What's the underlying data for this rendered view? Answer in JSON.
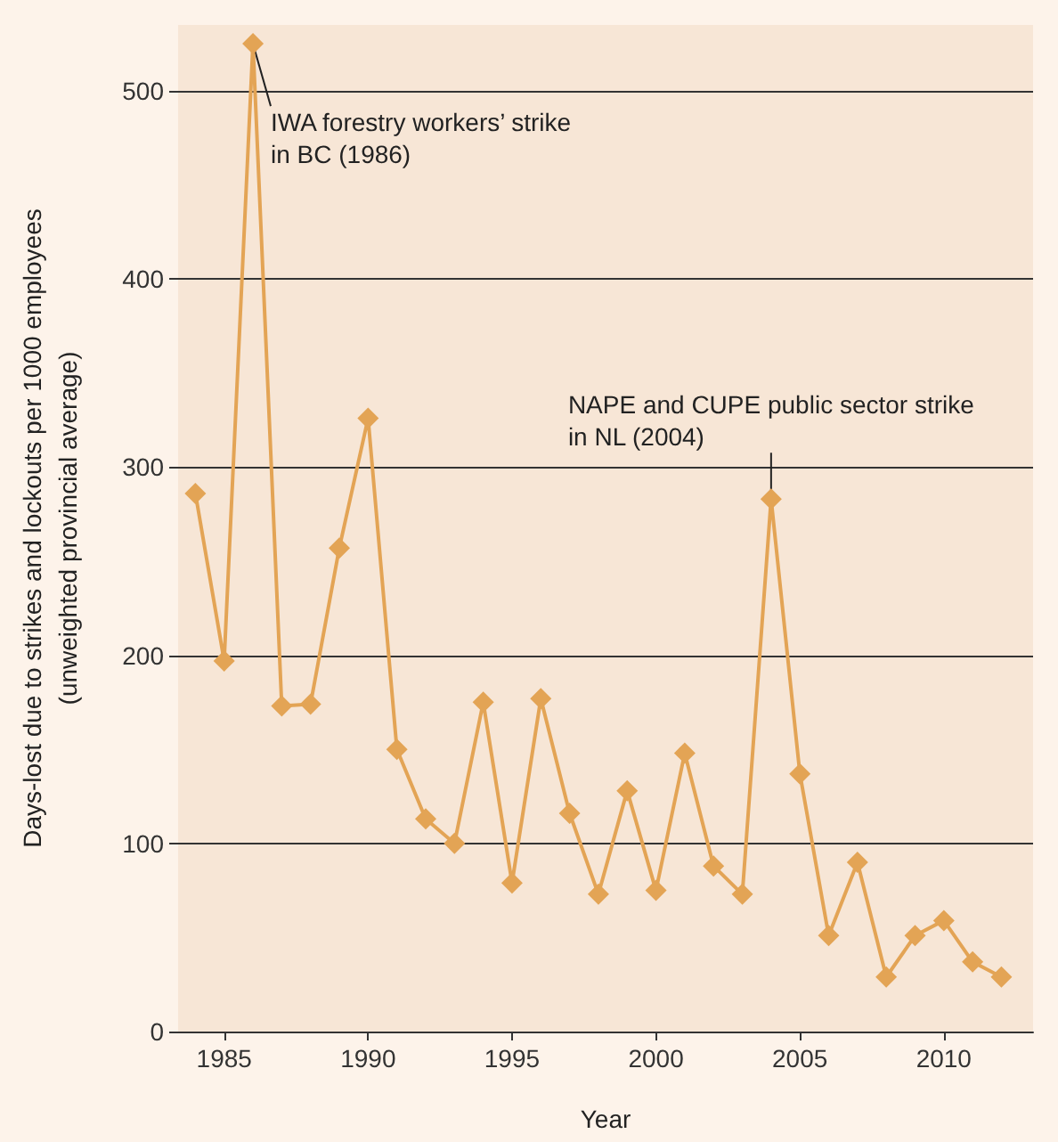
{
  "chart_data": {
    "type": "line",
    "xlabel": "Year",
    "ylabel": "Days-lost due to strikes and lockouts per 1000 employees\n(unweighted provincial average)",
    "x": [
      1984,
      1985,
      1986,
      1987,
      1988,
      1989,
      1990,
      1991,
      1992,
      1993,
      1994,
      1995,
      1996,
      1997,
      1998,
      1999,
      2000,
      2001,
      2002,
      2003,
      2004,
      2005,
      2006,
      2007,
      2008,
      2009,
      2010,
      2011,
      2012
    ],
    "series": [
      {
        "color": "#e3a455",
        "values": [
          286,
          197,
          525,
          173,
          174,
          257,
          326,
          150,
          113,
          100,
          175,
          79,
          177,
          116,
          73,
          128,
          75,
          148,
          88,
          73,
          283,
          137,
          51,
          90,
          29,
          51,
          59,
          37,
          29
        ]
      }
    ],
    "xlim": [
      1983.4,
      2013.1
    ],
    "xticks": [
      1985,
      1990,
      1995,
      2000,
      2005,
      2010
    ],
    "ylim": [
      0,
      535
    ],
    "yticks": [
      0,
      100,
      200,
      300,
      400,
      500
    ],
    "grid": "y",
    "marker": "diamond",
    "line_style": "solid",
    "annotations": [
      {
        "text": "IWA forestry workers’ strike\nin BC (1986)",
        "x": 1986,
        "y": 525
      },
      {
        "text": "NAPE and CUPE public sector strike\nin NL (2004)",
        "x": 2004,
        "y": 283
      }
    ]
  }
}
